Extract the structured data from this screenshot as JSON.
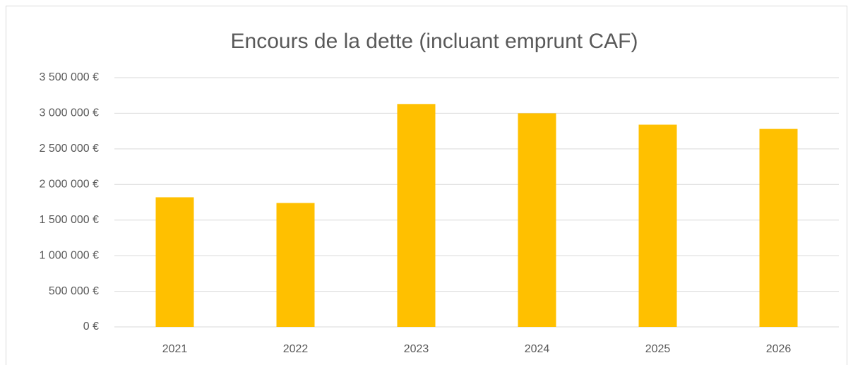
{
  "chart_data": {
    "type": "bar",
    "title": "Encours de la dette (incluant emprunt CAF)",
    "categories": [
      "2021",
      "2022",
      "2023",
      "2024",
      "2025",
      "2026"
    ],
    "values": [
      1820000,
      1740000,
      3130000,
      3000000,
      2840000,
      2780000
    ],
    "color": "#ffc000",
    "ylim": [
      0,
      3500000
    ],
    "yticks": [
      {
        "value": 0,
        "label": "0 €"
      },
      {
        "value": 500000,
        "label": "500 000 €"
      },
      {
        "value": 1000000,
        "label": "1 000 000 €"
      },
      {
        "value": 1500000,
        "label": "1 500 000 €"
      },
      {
        "value": 2000000,
        "label": "2 000 000 €"
      },
      {
        "value": 2500000,
        "label": "2 500 000 €"
      },
      {
        "value": 3000000,
        "label": "3 000 000 €"
      },
      {
        "value": 3500000,
        "label": "3 500 000 €"
      }
    ],
    "grid": true
  }
}
